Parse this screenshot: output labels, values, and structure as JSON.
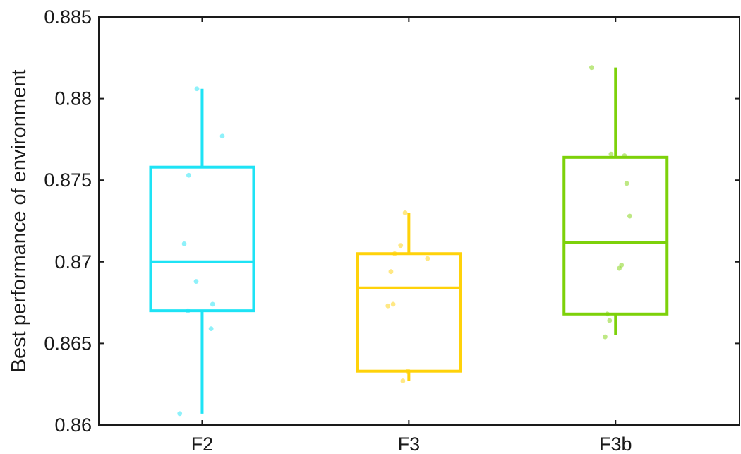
{
  "chart_data": {
    "type": "box",
    "title": "",
    "xlabel": "",
    "ylabel": "Best performance of environment",
    "ylim": [
      0.86,
      0.885
    ],
    "yticks": [
      0.86,
      0.865,
      0.87,
      0.875,
      0.88,
      0.885
    ],
    "ytick_labels": [
      "0.86",
      "0.865",
      "0.87",
      "0.875",
      "0.88",
      "0.885"
    ],
    "categories": [
      "F2",
      "F3",
      "F3b"
    ],
    "grid": false,
    "legend": "none",
    "series": [
      {
        "category": "F2",
        "color": "#1ee3f5",
        "whisker_low": 0.8607,
        "q1": 0.867,
        "median": 0.87,
        "q3": 0.8758,
        "whisker_high": 0.8806,
        "points": [
          {
            "jitter": -0.3,
            "y": 0.8607
          },
          {
            "jitter": -0.24,
            "y": 0.8711
          },
          {
            "jitter": -0.19,
            "y": 0.867
          },
          {
            "jitter": -0.18,
            "y": 0.8753
          },
          {
            "jitter": -0.08,
            "y": 0.8688
          },
          {
            "jitter": -0.07,
            "y": 0.8806
          },
          {
            "jitter": 0.12,
            "y": 0.8659
          },
          {
            "jitter": 0.14,
            "y": 0.8674
          },
          {
            "jitter": 0.27,
            "y": 0.8777
          }
        ]
      },
      {
        "category": "F3",
        "color": "#ffd20a",
        "whisker_low": 0.8627,
        "q1": 0.8633,
        "median": 0.8684,
        "q3": 0.8705,
        "whisker_high": 0.873,
        "points": [
          {
            "jitter": -0.28,
            "y": 0.8673
          },
          {
            "jitter": -0.24,
            "y": 0.8694
          },
          {
            "jitter": -0.21,
            "y": 0.8674
          },
          {
            "jitter": -0.19,
            "y": 0.8705
          },
          {
            "jitter": -0.11,
            "y": 0.871
          },
          {
            "jitter": -0.08,
            "y": 0.8627
          },
          {
            "jitter": -0.05,
            "y": 0.873
          },
          {
            "jitter": -0.01,
            "y": 0.8633
          },
          {
            "jitter": 0.25,
            "y": 0.8702
          }
        ]
      },
      {
        "category": "F3b",
        "color": "#7dd10a",
        "whisker_low": 0.8655,
        "q1": 0.8668,
        "median": 0.8712,
        "q3": 0.8764,
        "whisker_high": 0.8819,
        "points": [
          {
            "jitter": -0.32,
            "y": 0.8819
          },
          {
            "jitter": -0.14,
            "y": 0.8654
          },
          {
            "jitter": -0.11,
            "y": 0.8668
          },
          {
            "jitter": -0.08,
            "y": 0.8664
          },
          {
            "jitter": -0.06,
            "y": 0.8766
          },
          {
            "jitter": 0.05,
            "y": 0.8696
          },
          {
            "jitter": 0.08,
            "y": 0.8698
          },
          {
            "jitter": 0.12,
            "y": 0.8765
          },
          {
            "jitter": 0.15,
            "y": 0.8748
          },
          {
            "jitter": 0.19,
            "y": 0.8728
          }
        ]
      }
    ]
  }
}
